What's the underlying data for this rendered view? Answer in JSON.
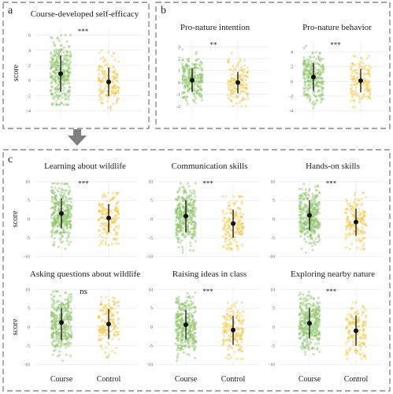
{
  "panel_labels": {
    "a": "a",
    "b": "b",
    "c": "c"
  },
  "common": {
    "y_axis_label": "score",
    "x_categories": [
      "Course",
      "Control"
    ],
    "colors": {
      "course": "#8fc46a",
      "control": "#f0c84e",
      "mean": "#111111",
      "border": "#8a8a8a",
      "grid": "#e6e6e6",
      "arrow": "#808080"
    }
  },
  "chart_data": [
    {
      "type": "scatter",
      "panel": "a",
      "title": "Course-developed self-efficacy",
      "ylabel": "score",
      "ylim": [
        -5,
        7
      ],
      "yticks": [
        -4,
        -2,
        0,
        2,
        4,
        6
      ],
      "significance": "***",
      "categories": [
        "Course",
        "Control"
      ],
      "series": [
        {
          "name": "Course",
          "mean": 0.9,
          "sd_low": -1.5,
          "sd_high": 3.3,
          "spread_low": -3.2,
          "spread_high": 6.0
        },
        {
          "name": "Control",
          "mean": -0.2,
          "sd_low": -2.1,
          "sd_high": 1.7,
          "spread_low": -3.8,
          "spread_high": 4.0
        }
      ]
    },
    {
      "type": "scatter",
      "panel": "b",
      "title": "Pro-nature intention",
      "ylabel": "",
      "ylim": [
        -3,
        3.5
      ],
      "yticks": [
        -2,
        -1,
        0,
        1,
        2,
        3
      ],
      "significance": "**",
      "categories": [
        "Course",
        "Control"
      ],
      "series": [
        {
          "name": "Course",
          "mean": 0.2,
          "sd_low": -0.8,
          "sd_high": 1.2,
          "spread_low": -2.6,
          "spread_high": 3.0
        },
        {
          "name": "Control",
          "mean": 0.0,
          "sd_low": -0.9,
          "sd_high": 0.9,
          "spread_low": -2.0,
          "spread_high": 2.5
        }
      ]
    },
    {
      "type": "scatter",
      "panel": "b",
      "title": "Pro-nature behavior",
      "ylabel": "",
      "ylim": [
        -5,
        5.5
      ],
      "yticks": [
        -4,
        -2,
        0,
        2,
        4
      ],
      "significance": "***",
      "categories": [
        "Course",
        "Control"
      ],
      "series": [
        {
          "name": "Course",
          "mean": 0.6,
          "sd_low": -1.3,
          "sd_high": 2.5,
          "spread_low": -4.0,
          "spread_high": 4.8
        },
        {
          "name": "Control",
          "mean": 0.1,
          "sd_low": -1.5,
          "sd_high": 1.7,
          "spread_low": -3.5,
          "spread_high": 3.5
        }
      ]
    },
    {
      "type": "scatter",
      "panel": "c",
      "title": "Learning about wildlife",
      "ylabel": "score",
      "ylim": [
        -10.5,
        10.5
      ],
      "yticks": [
        -10,
        -5,
        0,
        5,
        10
      ],
      "significance": "***",
      "categories": [
        "Course",
        "Control"
      ],
      "series": [
        {
          "name": "Course",
          "mean": 1.5,
          "sd_low": -2.5,
          "sd_high": 5.5,
          "spread_low": -9.0,
          "spread_high": 9.5
        },
        {
          "name": "Control",
          "mean": 0.3,
          "sd_low": -3.5,
          "sd_high": 4.0,
          "spread_low": -7.0,
          "spread_high": 7.0
        }
      ]
    },
    {
      "type": "scatter",
      "panel": "c",
      "title": "Communication skills",
      "ylabel": "",
      "ylim": [
        -10.5,
        10.5
      ],
      "yticks": [
        -10,
        -5,
        0,
        5,
        10
      ],
      "significance": "***",
      "categories": [
        "Course",
        "Control"
      ],
      "series": [
        {
          "name": "Course",
          "mean": 0.8,
          "sd_low": -3.5,
          "sd_high": 5.0,
          "spread_low": -9.0,
          "spread_high": 9.5
        },
        {
          "name": "Control",
          "mean": -1.2,
          "sd_low": -5.0,
          "sd_high": 2.5,
          "spread_low": -8.0,
          "spread_high": 6.0
        }
      ]
    },
    {
      "type": "scatter",
      "panel": "c",
      "title": "Hands-on skills",
      "ylabel": "",
      "ylim": [
        -10.5,
        10.5
      ],
      "yticks": [
        -10,
        -5,
        0,
        5,
        10
      ],
      "significance": "***",
      "categories": [
        "Course",
        "Control"
      ],
      "series": [
        {
          "name": "Course",
          "mean": 1.0,
          "sd_low": -3.0,
          "sd_high": 5.0,
          "spread_low": -9.0,
          "spread_high": 9.5
        },
        {
          "name": "Control",
          "mean": -0.8,
          "sd_low": -4.5,
          "sd_high": 2.8,
          "spread_low": -8.0,
          "spread_high": 7.0
        }
      ]
    },
    {
      "type": "scatter",
      "panel": "c",
      "title": "Asking questions about wildlife",
      "ylabel": "score",
      "ylim": [
        -10.5,
        10.5
      ],
      "yticks": [
        -10,
        -5,
        0,
        5,
        10
      ],
      "significance": "ns",
      "categories": [
        "Course",
        "Control"
      ],
      "series": [
        {
          "name": "Course",
          "mean": 1.2,
          "sd_low": -3.5,
          "sd_high": 5.0,
          "spread_low": -9.0,
          "spread_high": 9.5
        },
        {
          "name": "Control",
          "mean": 0.8,
          "sd_low": -3.2,
          "sd_high": 4.8,
          "spread_low": -8.0,
          "spread_high": 8.0
        }
      ]
    },
    {
      "type": "scatter",
      "panel": "c",
      "title": "Raising ideas in class",
      "ylabel": "",
      "ylim": [
        -10.5,
        10.5
      ],
      "yticks": [
        -10,
        -5,
        0,
        5,
        10
      ],
      "significance": "***",
      "categories": [
        "Course",
        "Control"
      ],
      "series": [
        {
          "name": "Course",
          "mean": 0.6,
          "sd_low": -3.3,
          "sd_high": 4.5,
          "spread_low": -9.0,
          "spread_high": 9.5
        },
        {
          "name": "Control",
          "mean": -0.8,
          "sd_low": -4.8,
          "sd_high": 3.0,
          "spread_low": -8.5,
          "spread_high": 6.5
        }
      ]
    },
    {
      "type": "scatter",
      "panel": "c",
      "title": "Exploring nearby nature",
      "ylabel": "",
      "ylim": [
        -10.5,
        10.5
      ],
      "yticks": [
        -10,
        -5,
        0,
        5,
        10
      ],
      "significance": "***",
      "categories": [
        "Course",
        "Control"
      ],
      "series": [
        {
          "name": "Course",
          "mean": 1.0,
          "sd_low": -3.0,
          "sd_high": 5.0,
          "spread_low": -9.0,
          "spread_high": 9.5
        },
        {
          "name": "Control",
          "mean": -1.0,
          "sd_low": -5.0,
          "sd_high": 3.0,
          "spread_low": -8.5,
          "spread_high": 6.5
        }
      ]
    }
  ]
}
